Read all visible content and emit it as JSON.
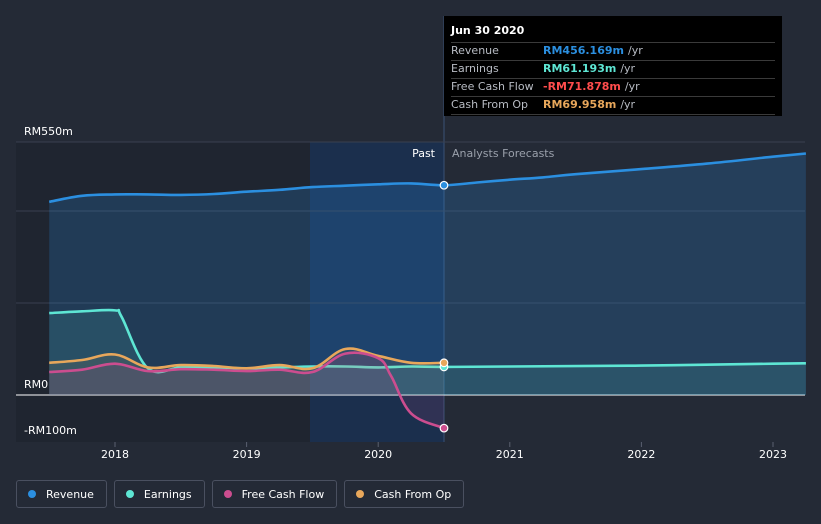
{
  "chart_data": {
    "type": "line",
    "currency_prefix": "RM",
    "y_tick_labels": [
      "RM550m",
      "RM0",
      "-RM100m"
    ],
    "x_tick_labels": [
      "2018",
      "2019",
      "2020",
      "2021",
      "2022",
      "2023"
    ],
    "ylim": [
      -100,
      550
    ],
    "divider_date": 2020.5,
    "past_label": "Past",
    "forecast_label": "Analysts Forecasts",
    "series": [
      {
        "name": "Revenue",
        "color": "#2b8fe0",
        "x": [
          2017.5,
          2017.75,
          2018.0,
          2018.25,
          2018.5,
          2018.75,
          2019.0,
          2019.25,
          2019.5,
          2019.75,
          2020.0,
          2020.25,
          2020.5,
          2020.75,
          2021.0,
          2021.25,
          2021.5,
          2022.0,
          2022.5,
          2023.0,
          2023.25
        ],
        "y": [
          420,
          433,
          436,
          436,
          435,
          437,
          442,
          446,
          452,
          455,
          458,
          460,
          456,
          462,
          468,
          473,
          480,
          491,
          503,
          518,
          525
        ]
      },
      {
        "name": "Earnings",
        "color": "#5ee6d4",
        "x": [
          2017.5,
          2017.75,
          2018.0,
          2018.05,
          2018.25,
          2018.5,
          2018.75,
          2019.0,
          2019.25,
          2019.5,
          2019.75,
          2020.0,
          2020.25,
          2020.5,
          2021.0,
          2022.0,
          2023.0,
          2023.25
        ],
        "y": [
          178,
          182,
          184,
          170,
          58,
          60,
          60,
          58,
          60,
          62,
          62,
          60,
          62,
          61,
          62,
          64,
          68,
          69
        ]
      },
      {
        "name": "Free Cash Flow",
        "color": "#cc4d8f",
        "x": [
          2017.5,
          2017.75,
          2018.0,
          2018.25,
          2018.5,
          2018.75,
          2019.0,
          2019.25,
          2019.5,
          2019.75,
          2020.0,
          2020.1,
          2020.25,
          2020.5
        ],
        "y": [
          50,
          55,
          68,
          52,
          56,
          55,
          52,
          55,
          50,
          90,
          80,
          40,
          -40,
          -72
        ]
      },
      {
        "name": "Cash From Op",
        "color": "#e8a75b",
        "x": [
          2017.5,
          2017.75,
          2018.0,
          2018.25,
          2018.5,
          2018.75,
          2019.0,
          2019.25,
          2019.5,
          2019.75,
          2020.0,
          2020.25,
          2020.5
        ],
        "y": [
          70,
          76,
          88,
          60,
          65,
          63,
          58,
          65,
          58,
          100,
          85,
          70,
          70
        ]
      }
    ],
    "tooltip": {
      "date": "Jun 30 2020",
      "rows": [
        {
          "label": "Revenue",
          "value": "RM456.169m",
          "unit": "/yr",
          "color": "#2b8fe0"
        },
        {
          "label": "Earnings",
          "value": "RM61.193m",
          "unit": "/yr",
          "color": "#5ee6d4"
        },
        {
          "label": "Free Cash Flow",
          "value": "-RM71.878m",
          "unit": "/yr",
          "color": "#ff4d4d"
        },
        {
          "label": "Cash From Op",
          "value": "RM69.958m",
          "unit": "/yr",
          "color": "#e8a75b"
        }
      ]
    }
  },
  "legend": {
    "items": [
      {
        "label": "Revenue",
        "color": "#2b8fe0"
      },
      {
        "label": "Earnings",
        "color": "#5ee6d4"
      },
      {
        "label": "Free Cash Flow",
        "color": "#cc4d8f"
      },
      {
        "label": "Cash From Op",
        "color": "#e8a75b"
      }
    ]
  }
}
